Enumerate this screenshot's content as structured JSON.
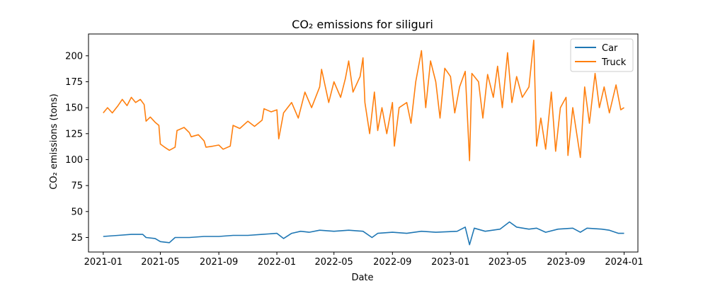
{
  "chart_data": {
    "type": "line",
    "title": "CO₂ emissions for siliguri",
    "xlabel": "Date",
    "ylabel": "CO₂ emissions (tons)",
    "x_ticks": [
      "2021-01",
      "2021-05",
      "2021-09",
      "2022-01",
      "2022-05",
      "2022-09",
      "2023-01",
      "2023-05",
      "2023-09",
      "2024-01"
    ],
    "y_ticks": [
      25,
      50,
      75,
      100,
      125,
      150,
      175,
      200
    ],
    "xlim": [
      "2020-12-01",
      "2024-01-30"
    ],
    "ylim": [
      11,
      221
    ],
    "grid": false,
    "legend_position": "top-right",
    "series": [
      {
        "name": "Car",
        "color": "#1f77b4",
        "points": [
          [
            "2021-01-01",
            26
          ],
          [
            "2021-02-01",
            27
          ],
          [
            "2021-03-01",
            28
          ],
          [
            "2021-03-25",
            28
          ],
          [
            "2021-04-01",
            25
          ],
          [
            "2021-04-20",
            24
          ],
          [
            "2021-05-01",
            21
          ],
          [
            "2021-05-20",
            20
          ],
          [
            "2021-06-01",
            25
          ],
          [
            "2021-07-01",
            25
          ],
          [
            "2021-08-01",
            26
          ],
          [
            "2021-09-01",
            26
          ],
          [
            "2021-10-01",
            27
          ],
          [
            "2021-11-01",
            27
          ],
          [
            "2021-12-01",
            28
          ],
          [
            "2022-01-01",
            29
          ],
          [
            "2022-01-15",
            24
          ],
          [
            "2022-02-01",
            29
          ],
          [
            "2022-02-20",
            31
          ],
          [
            "2022-03-10",
            30
          ],
          [
            "2022-04-01",
            32
          ],
          [
            "2022-05-01",
            31
          ],
          [
            "2022-06-01",
            32
          ],
          [
            "2022-07-01",
            31
          ],
          [
            "2022-07-20",
            25
          ],
          [
            "2022-08-01",
            29
          ],
          [
            "2022-09-01",
            30
          ],
          [
            "2022-10-01",
            29
          ],
          [
            "2022-11-01",
            31
          ],
          [
            "2022-12-01",
            30
          ],
          [
            "2023-01-15",
            31
          ],
          [
            "2023-02-01",
            35
          ],
          [
            "2023-02-10",
            18
          ],
          [
            "2023-02-20",
            34
          ],
          [
            "2023-03-15",
            31
          ],
          [
            "2023-04-15",
            33
          ],
          [
            "2023-05-05",
            40
          ],
          [
            "2023-05-20",
            35
          ],
          [
            "2023-06-15",
            33
          ],
          [
            "2023-07-01",
            34
          ],
          [
            "2023-07-20",
            30
          ],
          [
            "2023-08-15",
            33
          ],
          [
            "2023-09-15",
            34
          ],
          [
            "2023-10-01",
            30
          ],
          [
            "2023-10-15",
            34
          ],
          [
            "2023-11-15",
            33
          ],
          [
            "2023-12-01",
            32
          ],
          [
            "2023-12-20",
            29
          ],
          [
            "2024-01-01",
            29
          ]
        ]
      },
      {
        "name": "Truck",
        "color": "#ff7f0e",
        "points": [
          [
            "2021-01-01",
            145
          ],
          [
            "2021-01-10",
            150
          ],
          [
            "2021-01-20",
            145
          ],
          [
            "2021-02-01",
            152
          ],
          [
            "2021-02-10",
            158
          ],
          [
            "2021-02-20",
            152
          ],
          [
            "2021-03-01",
            160
          ],
          [
            "2021-03-10",
            155
          ],
          [
            "2021-03-20",
            158
          ],
          [
            "2021-03-28",
            153
          ],
          [
            "2021-04-01",
            137
          ],
          [
            "2021-04-10",
            141
          ],
          [
            "2021-04-20",
            136
          ],
          [
            "2021-04-28",
            133
          ],
          [
            "2021-05-01",
            115
          ],
          [
            "2021-05-10",
            112
          ],
          [
            "2021-05-20",
            109
          ],
          [
            "2021-06-01",
            112
          ],
          [
            "2021-06-05",
            128
          ],
          [
            "2021-06-20",
            131
          ],
          [
            "2021-07-01",
            126
          ],
          [
            "2021-07-05",
            122
          ],
          [
            "2021-07-20",
            124
          ],
          [
            "2021-08-01",
            118
          ],
          [
            "2021-08-05",
            112
          ],
          [
            "2021-08-20",
            113
          ],
          [
            "2021-09-01",
            114
          ],
          [
            "2021-09-10",
            110
          ],
          [
            "2021-09-25",
            113
          ],
          [
            "2021-10-01",
            133
          ],
          [
            "2021-10-15",
            130
          ],
          [
            "2021-11-01",
            137
          ],
          [
            "2021-11-15",
            132
          ],
          [
            "2021-12-01",
            138
          ],
          [
            "2021-12-05",
            149
          ],
          [
            "2021-12-20",
            146
          ],
          [
            "2022-01-01",
            148
          ],
          [
            "2022-01-05",
            120
          ],
          [
            "2022-01-15",
            145
          ],
          [
            "2022-02-01",
            155
          ],
          [
            "2022-02-15",
            140
          ],
          [
            "2022-03-01",
            165
          ],
          [
            "2022-03-15",
            150
          ],
          [
            "2022-04-01",
            170
          ],
          [
            "2022-04-05",
            187
          ],
          [
            "2022-04-20",
            155
          ],
          [
            "2022-05-01",
            175
          ],
          [
            "2022-05-15",
            160
          ],
          [
            "2022-05-25",
            178
          ],
          [
            "2022-06-01",
            195
          ],
          [
            "2022-06-10",
            165
          ],
          [
            "2022-06-25",
            180
          ],
          [
            "2022-07-01",
            198
          ],
          [
            "2022-07-05",
            155
          ],
          [
            "2022-07-15",
            125
          ],
          [
            "2022-07-25",
            165
          ],
          [
            "2022-08-01",
            128
          ],
          [
            "2022-08-10",
            150
          ],
          [
            "2022-08-20",
            125
          ],
          [
            "2022-09-01",
            155
          ],
          [
            "2022-09-05",
            113
          ],
          [
            "2022-09-15",
            150
          ],
          [
            "2022-10-01",
            155
          ],
          [
            "2022-10-10",
            135
          ],
          [
            "2022-10-20",
            175
          ],
          [
            "2022-11-01",
            205
          ],
          [
            "2022-11-10",
            150
          ],
          [
            "2022-11-20",
            195
          ],
          [
            "2022-12-01",
            175
          ],
          [
            "2022-12-10",
            140
          ],
          [
            "2022-12-20",
            188
          ],
          [
            "2023-01-01",
            180
          ],
          [
            "2023-01-10",
            145
          ],
          [
            "2023-01-20",
            170
          ],
          [
            "2023-02-01",
            185
          ],
          [
            "2023-02-10",
            99
          ],
          [
            "2023-02-15",
            183
          ],
          [
            "2023-03-01",
            175
          ],
          [
            "2023-03-10",
            140
          ],
          [
            "2023-03-20",
            182
          ],
          [
            "2023-04-01",
            160
          ],
          [
            "2023-04-10",
            190
          ],
          [
            "2023-04-20",
            150
          ],
          [
            "2023-05-01",
            203
          ],
          [
            "2023-05-10",
            155
          ],
          [
            "2023-05-20",
            180
          ],
          [
            "2023-06-01",
            160
          ],
          [
            "2023-06-15",
            170
          ],
          [
            "2023-06-25",
            215
          ],
          [
            "2023-07-01",
            113
          ],
          [
            "2023-07-10",
            140
          ],
          [
            "2023-07-20",
            110
          ],
          [
            "2023-08-01",
            165
          ],
          [
            "2023-08-10",
            108
          ],
          [
            "2023-08-20",
            150
          ],
          [
            "2023-09-01",
            160
          ],
          [
            "2023-09-05",
            104
          ],
          [
            "2023-09-15",
            150
          ],
          [
            "2023-10-01",
            102
          ],
          [
            "2023-10-10",
            170
          ],
          [
            "2023-10-20",
            135
          ],
          [
            "2023-11-01",
            183
          ],
          [
            "2023-11-10",
            150
          ],
          [
            "2023-11-20",
            170
          ],
          [
            "2023-12-01",
            145
          ],
          [
            "2023-12-15",
            172
          ],
          [
            "2023-12-25",
            148
          ],
          [
            "2024-01-01",
            150
          ]
        ]
      }
    ]
  }
}
